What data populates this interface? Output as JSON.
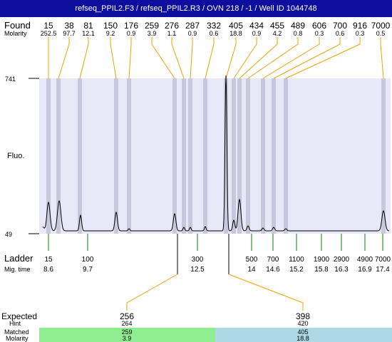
{
  "header": {
    "title": "refseq_PPIL2.F3 / refseq_PPIL2.R3 / OVN 218 / -1 / Well ID 1044748"
  },
  "labels": {
    "found": "Found",
    "molarity": "Molarity",
    "fluo": "Fluo.",
    "ladder": "Ladder",
    "mig_time": "Mig. time",
    "expected": "Expected",
    "hint": "Hint",
    "matched": "Matched",
    "molarity_bottom": "Molarity"
  },
  "colors": {
    "title_bg": "#0d0d9e",
    "plot_bg": "#e8e8f8",
    "band": "#c8c8dc",
    "found_line": "#f0a000",
    "ladder_line": "#008000",
    "matched_green": "#90ee90",
    "matched_blue": "#add8e6"
  },
  "chart_data": {
    "type": "line",
    "ylim": [
      49,
      741
    ],
    "y_ticks": [
      "741",
      "49"
    ],
    "found_peaks": [
      {
        "size": "15",
        "molarity": "252.5"
      },
      {
        "size": "38",
        "molarity": "97.7"
      },
      {
        "size": "81",
        "molarity": "12.1"
      },
      {
        "size": "150",
        "molarity": "9.2"
      },
      {
        "size": "176",
        "molarity": "0.9"
      },
      {
        "size": "259",
        "molarity": "3.9"
      },
      {
        "size": "276",
        "molarity": "1.1"
      },
      {
        "size": "287",
        "molarity": "0.9"
      },
      {
        "size": "332",
        "molarity": "0.6"
      },
      {
        "size": "405",
        "molarity": "18.8"
      },
      {
        "size": "434",
        "molarity": "0.9"
      },
      {
        "size": "455",
        "molarity": "4.2"
      },
      {
        "size": "489",
        "molarity": "0.8"
      },
      {
        "size": "606",
        "molarity": "0.3"
      },
      {
        "size": "700",
        "molarity": "0.6"
      },
      {
        "size": "916",
        "molarity": "0.3"
      },
      {
        "size": "7000",
        "molarity": "0.5"
      }
    ],
    "ladder": [
      {
        "size": "15",
        "mig_time": "8.6"
      },
      {
        "size": "100",
        "mig_time": "9.7"
      },
      {
        "size": "300",
        "mig_time": "12.5"
      },
      {
        "size": "500",
        "mig_time": "14"
      },
      {
        "size": "700",
        "mig_time": "14.6"
      },
      {
        "size": "1100",
        "mig_time": "15.2"
      },
      {
        "size": "1900",
        "mig_time": "15.8"
      },
      {
        "size": "2900",
        "mig_time": "16.3"
      },
      {
        "size": "4900",
        "mig_time": "16.9"
      },
      {
        "size": "7000",
        "mig_time": "17.4"
      }
    ],
    "expected": [
      {
        "size": "256",
        "hint": "264",
        "matched": "259",
        "molarity": "3.9"
      },
      {
        "size": "398",
        "hint": "420",
        "matched": "405",
        "molarity": "18.8"
      }
    ]
  }
}
